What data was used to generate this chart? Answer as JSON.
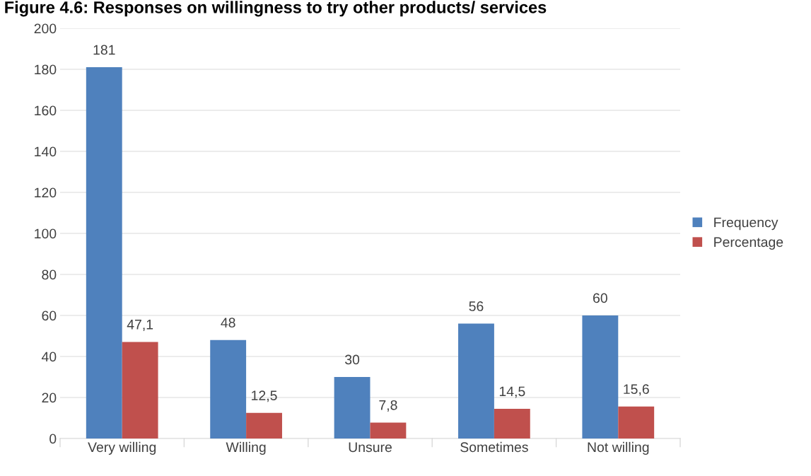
{
  "chart_data": {
    "type": "bar",
    "title": "Figure 4.6: Responses on willingness to try other products/ services",
    "categories": [
      "Very willing",
      "Willing",
      "Unsure",
      "Sometimes",
      "Not willing"
    ],
    "series": [
      {
        "name": "Frequency",
        "color": "#4f81bd",
        "values": [
          181,
          48,
          30,
          56,
          60
        ],
        "value_labels": [
          "181",
          "48",
          "30",
          "56",
          "60"
        ]
      },
      {
        "name": "Percentage",
        "color": "#c0504d",
        "values": [
          47.1,
          12.5,
          7.8,
          14.5,
          15.6
        ],
        "value_labels": [
          "47,1",
          "12,5",
          "7,8",
          "14,5",
          "15,6"
        ]
      }
    ],
    "ylim": [
      0,
      200
    ],
    "yticks": [
      0,
      20,
      40,
      60,
      80,
      100,
      120,
      140,
      160,
      180,
      200
    ],
    "grid": "y",
    "legend": "right"
  }
}
